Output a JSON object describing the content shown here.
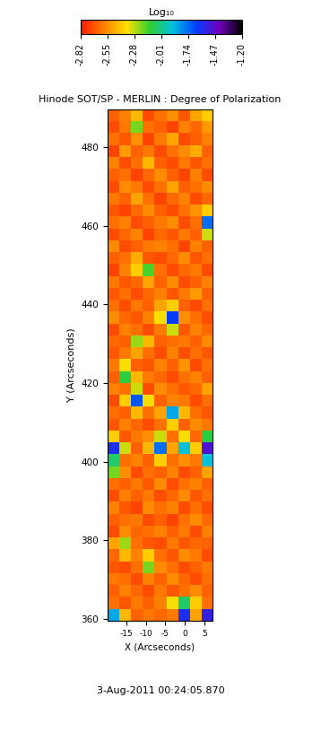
{
  "chart_data": {
    "type": "heatmap",
    "title": "Hinode SOT/SP - MERLIN : Degree of Polarization",
    "x_label": "X (Arcseconds)",
    "y_label": "Y (Arcseconds)",
    "xlim": [
      -19.8,
      7.1
    ],
    "xticks": [
      -15,
      -10,
      -5,
      0,
      5
    ],
    "ylim": [
      359.5,
      489.5
    ],
    "yticks": [
      360,
      380,
      400,
      420,
      440,
      460,
      480
    ],
    "colorbar": {
      "label": "Log₁₀",
      "range": [
        -2.82,
        -1.2
      ],
      "ticks": [
        -2.82,
        -2.55,
        -2.28,
        -2.01,
        -1.74,
        -1.47,
        {
          "value": -1.2,
          "label": "-1.20"
        }
      ]
    },
    "annotations": [
      "3-Aug-2011 00:24:05.870"
    ],
    "cells": [
      [
        -2.66,
        -2.58,
        -2.45,
        -2.7,
        -2.62,
        -2.55,
        -2.68,
        -2.5,
        -2.4
      ],
      [
        -2.7,
        -2.6,
        -2.2,
        -2.62,
        -2.66,
        -2.72,
        -2.58,
        -2.64,
        -2.52
      ],
      [
        -2.62,
        -2.68,
        -2.55,
        -2.72,
        -2.6,
        -2.5,
        -2.7,
        -2.66,
        -2.58
      ],
      [
        -2.72,
        -2.52,
        -2.66,
        -2.6,
        -2.7,
        -2.62,
        -2.56,
        -2.48,
        -2.66
      ],
      [
        -2.58,
        -2.7,
        -2.62,
        -2.45,
        -2.66,
        -2.7,
        -2.6,
        -2.68,
        -2.62
      ],
      [
        -2.66,
        -2.62,
        -2.72,
        -2.64,
        -2.56,
        -2.66,
        -2.72,
        -2.58,
        -2.7
      ],
      [
        -2.7,
        -2.56,
        -2.6,
        -2.7,
        -2.62,
        -2.5,
        -2.66,
        -2.62,
        -2.56
      ],
      [
        -2.6,
        -2.66,
        -2.5,
        -2.62,
        -2.72,
        -2.64,
        -2.58,
        -2.7,
        -2.64
      ],
      [
        -2.68,
        -2.72,
        -2.64,
        -2.56,
        -2.66,
        -2.7,
        -2.62,
        -2.54,
        -2.4
      ],
      [
        -2.62,
        -2.58,
        -2.7,
        -2.66,
        -2.6,
        -2.56,
        -2.7,
        -2.62,
        -1.75
      ],
      [
        -2.7,
        -2.64,
        -2.58,
        -2.72,
        -2.64,
        -2.68,
        -2.6,
        -2.66,
        -2.3
      ],
      [
        -2.56,
        -2.7,
        -2.66,
        -2.6,
        -2.58,
        -2.62,
        -2.72,
        -2.58,
        -2.66
      ],
      [
        -2.66,
        -2.62,
        -2.48,
        -2.68,
        -2.7,
        -2.64,
        -2.56,
        -2.68,
        -2.62
      ],
      [
        -2.72,
        -2.58,
        -2.4,
        -2.15,
        -2.62,
        -2.7,
        -2.64,
        -2.6,
        -2.7
      ],
      [
        -2.6,
        -2.68,
        -2.64,
        -2.5,
        -2.66,
        -2.56,
        -2.7,
        -2.66,
        -2.58
      ],
      [
        -2.68,
        -2.62,
        -2.7,
        -2.64,
        -2.58,
        -2.68,
        -2.6,
        -2.52,
        -2.66
      ],
      [
        -2.62,
        -2.7,
        -2.6,
        -2.66,
        -2.5,
        -2.4,
        -2.66,
        -2.7,
        -2.62
      ],
      [
        -2.56,
        -2.64,
        -2.68,
        -2.58,
        -2.35,
        -1.65,
        -2.55,
        -2.62,
        -2.7
      ],
      [
        -2.7,
        -2.58,
        -2.62,
        -2.7,
        -2.6,
        -2.3,
        -2.68,
        -2.58,
        -2.64
      ],
      [
        -2.64,
        -2.66,
        -2.25,
        -2.45,
        -2.66,
        -2.62,
        -2.6,
        -2.66,
        -2.56
      ],
      [
        -2.68,
        -2.6,
        -2.5,
        -2.62,
        -2.7,
        -2.58,
        -2.7,
        -2.62,
        -2.68
      ],
      [
        -2.6,
        -2.35,
        -2.66,
        -2.68,
        -2.58,
        -2.66,
        -2.54,
        -2.7,
        -2.62
      ],
      [
        -2.66,
        -2.1,
        -2.45,
        -2.6,
        -2.64,
        -2.7,
        -2.62,
        -2.58,
        -2.66
      ],
      [
        -2.58,
        -2.62,
        -2.3,
        -2.7,
        -2.56,
        -2.62,
        -2.68,
        -2.64,
        -2.5
      ],
      [
        -2.7,
        -2.4,
        -1.7,
        -2.35,
        -2.66,
        -2.58,
        -2.6,
        -2.7,
        -2.62
      ],
      [
        -2.62,
        -2.66,
        -2.45,
        -2.62,
        -2.5,
        -1.85,
        -2.45,
        -2.62,
        -2.68
      ],
      [
        -2.68,
        -2.58,
        -2.64,
        -2.7,
        -2.62,
        -2.4,
        -2.66,
        -2.56,
        -2.6
      ],
      [
        -2.4,
        -2.68,
        -2.6,
        -2.55,
        -2.3,
        -2.62,
        -2.35,
        -2.64,
        -2.1
      ],
      [
        -1.6,
        -2.3,
        -2.66,
        -2.45,
        -1.75,
        -2.5,
        -1.9,
        -2.4,
        -1.5
      ],
      [
        -2.05,
        -2.62,
        -2.58,
        -2.66,
        -2.4,
        -2.62,
        -2.55,
        -2.6,
        -1.9
      ],
      [
        -2.2,
        -2.55,
        -2.7,
        -2.62,
        -2.66,
        -2.58,
        -2.7,
        -2.66,
        -2.5
      ],
      [
        -2.62,
        -2.66,
        -2.6,
        -2.68,
        -2.56,
        -2.7,
        -2.62,
        -2.58,
        -2.66
      ],
      [
        -2.7,
        -2.58,
        -2.66,
        -2.6,
        -2.7,
        -2.64,
        -2.56,
        -2.68,
        -2.62
      ],
      [
        -2.58,
        -2.68,
        -2.72,
        -2.56,
        -2.62,
        -2.58,
        -2.7,
        -2.62,
        -2.7
      ],
      [
        -2.66,
        -2.62,
        -2.6,
        -2.7,
        -2.66,
        -2.72,
        -2.62,
        -2.56,
        -2.64
      ],
      [
        -2.7,
        -2.56,
        -2.64,
        -2.62,
        -2.58,
        -2.66,
        -2.6,
        -2.7,
        -2.58
      ],
      [
        -2.5,
        -2.25,
        -2.62,
        -2.68,
        -2.7,
        -2.6,
        -2.68,
        -2.64,
        -2.66
      ],
      [
        -2.64,
        -2.45,
        -2.58,
        -2.4,
        -2.62,
        -2.68,
        -2.56,
        -2.6,
        -2.7
      ],
      [
        -2.68,
        -2.7,
        -2.62,
        -2.2,
        -2.56,
        -2.62,
        -2.7,
        -2.66,
        -2.6
      ],
      [
        -2.6,
        -2.62,
        -2.7,
        -2.58,
        -2.66,
        -2.56,
        -2.64,
        -2.7,
        -2.62
      ],
      [
        -2.66,
        -2.58,
        -2.64,
        -2.7,
        -2.6,
        -2.68,
        -2.62,
        -2.56,
        -2.66
      ],
      [
        -2.62,
        -2.68,
        -2.6,
        -2.66,
        -2.58,
        -2.35,
        -2.05,
        -2.4,
        -2.62
      ],
      [
        -1.85,
        -2.45,
        -2.66,
        -2.6,
        -2.64,
        -2.6,
        -1.6,
        -2.5,
        -1.55
      ]
    ]
  }
}
